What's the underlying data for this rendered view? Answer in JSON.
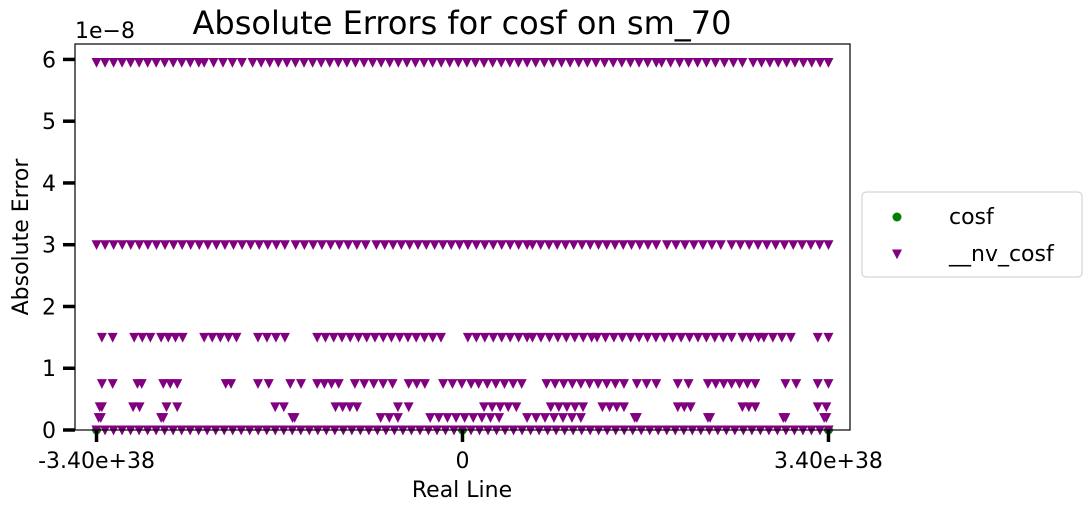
{
  "chart_data": {
    "type": "scatter",
    "title": "Absolute Errors for cosf on sm_70",
    "xlabel": "Real Line",
    "ylabel": "Absolute Error",
    "y_offset_text": "1e−8",
    "y_scale": 1e-08,
    "xlim": [
      -3.6e+38,
      3.6e+38
    ],
    "ylim": [
      0,
      6.25e-08
    ],
    "x_ticks": [
      {
        "value": -3.4e+38,
        "label": "-3.40e+38"
      },
      {
        "value": 0,
        "label": "0"
      },
      {
        "value": 3.4e+38,
        "label": "3.40e+38"
      }
    ],
    "y_ticks": [
      {
        "value": 0,
        "label": "0"
      },
      {
        "value": 1e-08,
        "label": "1"
      },
      {
        "value": 2e-08,
        "label": "2"
      },
      {
        "value": 3e-08,
        "label": "3"
      },
      {
        "value": 4e-08,
        "label": "4"
      },
      {
        "value": 5e-08,
        "label": "5"
      },
      {
        "value": 6e-08,
        "label": "6"
      }
    ],
    "grid": false,
    "legend_position": "right-outside",
    "series": [
      {
        "name": "cosf",
        "marker": "circle",
        "color": "#008000",
        "points": [
          {
            "x": -3.4e+38,
            "y": 0
          },
          {
            "x": 0,
            "y": 0
          },
          {
            "x": 3.4e+38,
            "y": 0
          }
        ]
      },
      {
        "name": "__nv_cosf",
        "marker": "triangle-down",
        "color": "#800080",
        "levels": [
          {
            "y": 0,
            "x_ranges": [
              [
                -3.4e+38,
                3.4e+38
              ]
            ]
          },
          {
            "y": 2e-09,
            "x_ranges": [
              [
                -3.38e+38,
                -3.36e+38
              ],
              [
                -2.8e+38,
                -2.78e+38
              ],
              [
                -1.58e+38,
                -1.56e+38
              ],
              [
                -7.6e+37,
                -6e+37
              ],
              [
                -3e+37,
                3.4e+37
              ],
              [
                6e+37,
                1.1e+38
              ],
              [
                1.6e+38,
                1.62e+38
              ],
              [
                2.28e+38,
                2.3e+38
              ],
              [
                2.98e+38,
                3e+38
              ],
              [
                3.36e+38,
                3.38e+38
              ]
            ]
          },
          {
            "y": 3.75e-09,
            "x_ranges": [
              [
                -3.37e+38,
                -3.35e+38
              ],
              [
                -3.06e+38,
                -3e+38
              ],
              [
                -2.75e+38,
                -2.65e+38
              ],
              [
                -1.74e+38,
                -1.66e+38
              ],
              [
                -1.18e+38,
                -9.8e+37
              ],
              [
                -6e+37,
                -5e+37
              ],
              [
                2e+37,
                5e+37
              ],
              [
                8.2e+37,
                1.12e+38
              ],
              [
                1.3e+38,
                1.5e+38
              ],
              [
                2e+38,
                2.12e+38
              ],
              [
                2.6e+38,
                2.72e+38
              ],
              [
                3.3e+38,
                3.38e+38
              ]
            ]
          },
          {
            "y": 7.5e-09,
            "x_ranges": [
              [
                -3.35e+38,
                -3.25e+38
              ],
              [
                -3.02e+38,
                -2.98e+38
              ],
              [
                -2.78e+38,
                -2.65e+38
              ],
              [
                -2.2e+38,
                -2.15e+38
              ],
              [
                -1.9e+38,
                -1.8e+38
              ],
              [
                -1.6e+38,
                -1.5e+38
              ],
              [
                -1.35e+38,
                -1.15e+38
              ],
              [
                -1e+38,
                -6.5e+37
              ],
              [
                -5e+37,
                -3.5e+37
              ],
              [
                -1.8e+37,
                8e+36
              ],
              [
                1.5e+37,
                5.5e+37
              ],
              [
                7.8e+37,
                1.5e+38
              ],
              [
                1.62e+38,
                1.8e+38
              ],
              [
                2e+38,
                2.1e+38
              ],
              [
                2.28e+38,
                2.72e+38
              ],
              [
                3e+38,
                3.1e+38
              ],
              [
                3.3e+38,
                3.4e+38
              ]
            ]
          },
          {
            "y": 1.5e-08,
            "x_ranges": [
              [
                -3.35e+38,
                -3.25e+38
              ],
              [
                -3.05e+38,
                -2.9e+38
              ],
              [
                -2.8e+38,
                -2.6e+38
              ],
              [
                -2.4e+38,
                -2.1e+38
              ],
              [
                -1.9e+38,
                -1.65e+38
              ],
              [
                -1.35e+38,
                -2e+37
              ],
              [
                5e+36,
                6e+37
              ],
              [
                6.5e+37,
                1.2e+38
              ],
              [
                1.25e+38,
                2.5e+38
              ],
              [
                2.6e+38,
                2.75e+38
              ],
              [
                2.8e+38,
                3.05e+38
              ],
              [
                3.3e+38,
                3.4e+38
              ]
            ]
          },
          {
            "y": 3e-08,
            "x_ranges": [
              [
                -3.4e+38,
                -1.65e+38
              ],
              [
                -1.55e+38,
                -9e+37
              ],
              [
                -8e+37,
                5e+36
              ],
              [
                5e+36,
                6e+37
              ],
              [
                6.5e+37,
                1.8e+38
              ],
              [
                1.9e+38,
                2.4e+38
              ],
              [
                2.5e+38,
                3.4e+38
              ]
            ]
          },
          {
            "y": 5.95e-08,
            "x_ranges": [
              [
                -3.4e+38,
                -2.45e+38
              ],
              [
                -2.4e+38,
                -2.05e+38
              ],
              [
                -1.95e+38,
                2e+37
              ],
              [
                2e+37,
                1.8e+38
              ],
              [
                1.85e+38,
                2.6e+38
              ],
              [
                2.7e+38,
                3.4e+38
              ]
            ]
          }
        ]
      }
    ]
  }
}
